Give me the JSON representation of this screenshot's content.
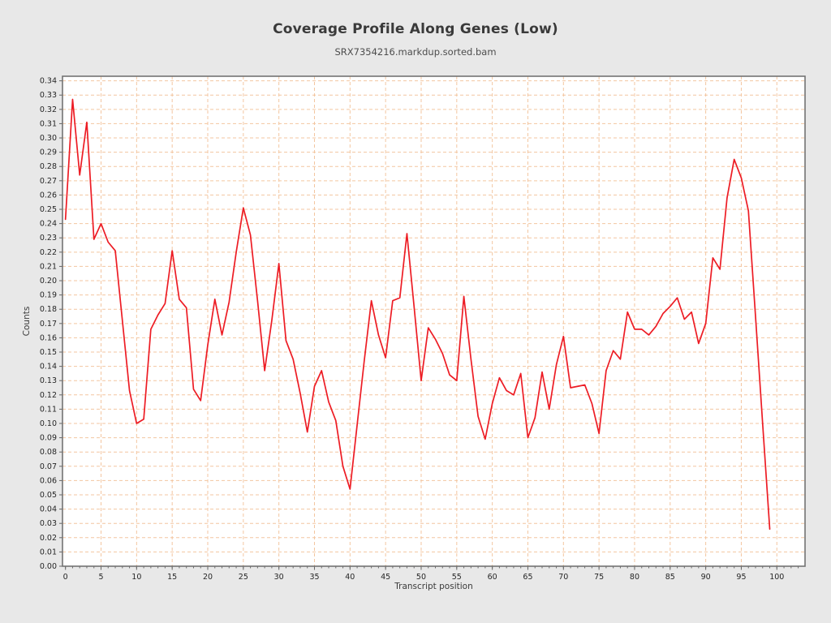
{
  "page": {
    "background_color": "#e8e8e8"
  },
  "chart_data": {
    "type": "line",
    "title": "Coverage Profile Along Genes (Low)",
    "subtitle": "SRX7354216.markdup.sorted.bam",
    "xlabel": "Transcript position",
    "ylabel": "Counts",
    "xlim": [
      -0.42,
      103.96
    ],
    "ylim": [
      0,
      0.3432
    ],
    "x_major_tick_step": 5,
    "x_major_tick_max": 100,
    "x_minor_tick_step": 1,
    "y_tick_step": 0.01,
    "y_tick_max": 0.34,
    "y_tick_decimals": 2,
    "grid": {
      "on": true,
      "color": "#f3c6a0",
      "dash": "4 3"
    },
    "legend": "none",
    "colors": {
      "plot_background": "#ffffff",
      "plot_border": "#737373",
      "tick_mark": "#666666",
      "line": "#ed1c24"
    },
    "series": [
      {
        "name": "coverage",
        "color": "#ed1c24",
        "x": [
          0,
          1,
          2,
          3,
          4,
          5,
          6,
          7,
          8,
          9,
          10,
          11,
          12,
          13,
          14,
          15,
          16,
          17,
          18,
          19,
          20,
          21,
          22,
          23,
          24,
          25,
          26,
          27,
          28,
          29,
          30,
          31,
          32,
          33,
          34,
          35,
          36,
          37,
          38,
          39,
          40,
          41,
          42,
          43,
          44,
          45,
          46,
          47,
          48,
          49,
          50,
          51,
          52,
          53,
          54,
          55,
          56,
          57,
          58,
          59,
          60,
          61,
          62,
          63,
          64,
          65,
          66,
          67,
          68,
          69,
          70,
          71,
          72,
          73,
          74,
          75,
          76,
          77,
          78,
          79,
          80,
          81,
          82,
          83,
          84,
          85,
          86,
          87,
          88,
          89,
          90,
          91,
          92,
          93,
          94,
          95,
          96,
          97,
          98,
          99
        ],
        "values": [
          0.243,
          0.327,
          0.274,
          0.311,
          0.229,
          0.24,
          0.227,
          0.221,
          0.172,
          0.123,
          0.1,
          0.103,
          0.166,
          0.176,
          0.184,
          0.221,
          0.187,
          0.181,
          0.124,
          0.116,
          0.155,
          0.187,
          0.162,
          0.185,
          0.22,
          0.251,
          0.232,
          0.186,
          0.137,
          0.172,
          0.212,
          0.158,
          0.145,
          0.121,
          0.094,
          0.126,
          0.137,
          0.115,
          0.102,
          0.07,
          0.054,
          0.099,
          0.144,
          0.186,
          0.162,
          0.146,
          0.186,
          0.188,
          0.233,
          0.182,
          0.13,
          0.167,
          0.159,
          0.149,
          0.134,
          0.13,
          0.189,
          0.145,
          0.105,
          0.089,
          0.114,
          0.132,
          0.123,
          0.12,
          0.135,
          0.09,
          0.104,
          0.136,
          0.11,
          0.141,
          0.161,
          0.125,
          0.126,
          0.127,
          0.114,
          0.093,
          0.137,
          0.151,
          0.145,
          0.178,
          0.166,
          0.166,
          0.162,
          0.168,
          0.177,
          0.182,
          0.188,
          0.173,
          0.178,
          0.156,
          0.17,
          0.216,
          0.208,
          0.258,
          0.285,
          0.272,
          0.249,
          0.175,
          0.1,
          0.026
        ]
      }
    ]
  }
}
